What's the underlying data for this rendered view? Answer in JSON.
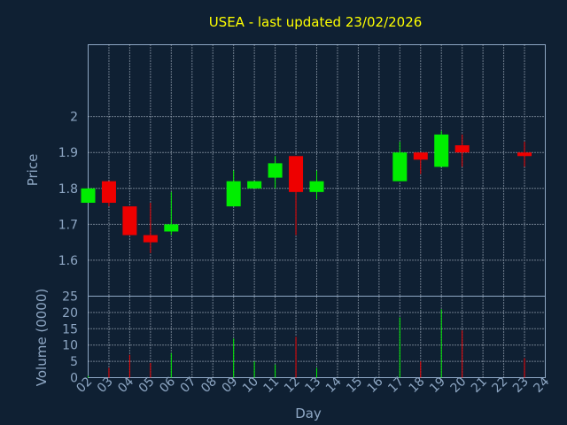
{
  "colors": {
    "background": "#0f2033",
    "frame": "#8ea7c4",
    "grid": "#c9d4e2",
    "title": "#ffff00",
    "up": "#00ee00",
    "down": "#ee0000"
  },
  "chart_data": [
    {
      "type": "candlestick",
      "title": "USEA - last updated 23/02/2026",
      "ylabel": "Price",
      "ylim": [
        1.5,
        2.2
      ],
      "yticks": [
        "1.6",
        "1.7",
        "1.8",
        "1.9",
        "2"
      ],
      "grid": true,
      "categories": [
        "02",
        "03",
        "04",
        "05",
        "06",
        "07",
        "08",
        "09",
        "10",
        "11",
        "12",
        "13",
        "14",
        "15",
        "16",
        "17",
        "18",
        "19",
        "20",
        "21",
        "22",
        "23",
        "24"
      ],
      "candles": [
        {
          "day": "02",
          "open": 1.76,
          "close": 1.8,
          "high": 1.8,
          "low": 1.76
        },
        {
          "day": "03",
          "open": 1.82,
          "close": 1.76,
          "high": 1.82,
          "low": 1.75
        },
        {
          "day": "04",
          "open": 1.75,
          "close": 1.67,
          "high": 1.75,
          "low": 1.67
        },
        {
          "day": "05",
          "open": 1.67,
          "close": 1.65,
          "high": 1.76,
          "low": 1.62
        },
        {
          "day": "06",
          "open": 1.68,
          "close": 1.7,
          "high": 1.79,
          "low": 1.67
        },
        {
          "day": "09",
          "open": 1.75,
          "close": 1.82,
          "high": 1.85,
          "low": 1.75
        },
        {
          "day": "10",
          "open": 1.8,
          "close": 1.82,
          "high": 1.82,
          "low": 1.8
        },
        {
          "day": "11",
          "open": 1.83,
          "close": 1.87,
          "high": 1.89,
          "low": 1.8
        },
        {
          "day": "12",
          "open": 1.89,
          "close": 1.79,
          "high": 1.89,
          "low": 1.67
        },
        {
          "day": "13",
          "open": 1.79,
          "close": 1.82,
          "high": 1.85,
          "low": 1.77
        },
        {
          "day": "17",
          "open": 1.82,
          "close": 1.9,
          "high": 1.93,
          "low": 1.82
        },
        {
          "day": "18",
          "open": 1.9,
          "close": 1.88,
          "high": 1.9,
          "low": 1.84
        },
        {
          "day": "19",
          "open": 1.86,
          "close": 1.95,
          "high": 1.96,
          "low": 1.86
        },
        {
          "day": "20",
          "open": 1.92,
          "close": 1.9,
          "high": 1.95,
          "low": 1.86
        },
        {
          "day": "23",
          "open": 1.9,
          "close": 1.89,
          "high": 1.93,
          "low": 1.86
        }
      ]
    },
    {
      "type": "bar",
      "ylabel": "Volume (0000)",
      "xlabel": "Day",
      "ylim": [
        0,
        25
      ],
      "yticks": [
        "0",
        "5",
        "10",
        "15",
        "20",
        "25"
      ],
      "grid": true,
      "categories": [
        "02",
        "03",
        "04",
        "05",
        "06",
        "07",
        "08",
        "09",
        "10",
        "11",
        "12",
        "13",
        "14",
        "15",
        "16",
        "17",
        "18",
        "19",
        "20",
        "21",
        "22",
        "23",
        "24"
      ],
      "bars": [
        {
          "day": "02",
          "value": 0.5,
          "direction": "up"
        },
        {
          "day": "03",
          "value": 3,
          "direction": "down"
        },
        {
          "day": "04",
          "value": 7,
          "direction": "down"
        },
        {
          "day": "05",
          "value": 4.5,
          "direction": "down"
        },
        {
          "day": "06",
          "value": 7.5,
          "direction": "up"
        },
        {
          "day": "09",
          "value": 12,
          "direction": "up"
        },
        {
          "day": "10",
          "value": 5,
          "direction": "up"
        },
        {
          "day": "11",
          "value": 4,
          "direction": "up"
        },
        {
          "day": "12",
          "value": 12.5,
          "direction": "down"
        },
        {
          "day": "13",
          "value": 3,
          "direction": "up"
        },
        {
          "day": "17",
          "value": 18.5,
          "direction": "up"
        },
        {
          "day": "18",
          "value": 5,
          "direction": "down"
        },
        {
          "day": "19",
          "value": 21,
          "direction": "up"
        },
        {
          "day": "20",
          "value": 14.5,
          "direction": "down"
        },
        {
          "day": "23",
          "value": 6,
          "direction": "down"
        }
      ]
    }
  ]
}
